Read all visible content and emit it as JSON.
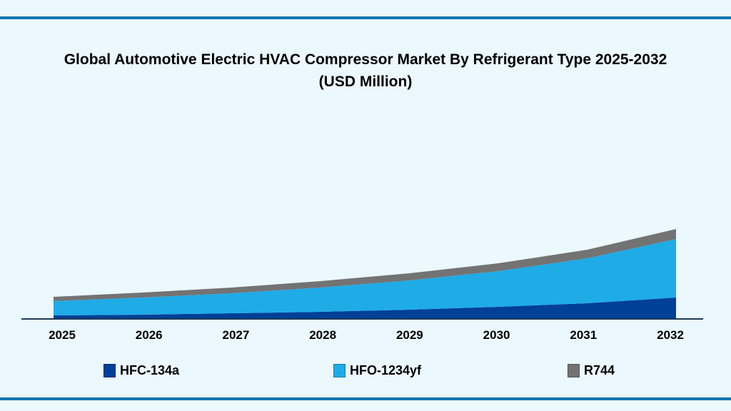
{
  "chart_data": {
    "type": "area",
    "stacked": true,
    "title": "Global Automotive Electric HVAC Compressor Market By Refrigerant Type 2025-2032",
    "subtitle": "(USD Million)",
    "xlabel": "",
    "ylabel": "",
    "categories": [
      "2025",
      "2026",
      "2027",
      "2028",
      "2029",
      "2030",
      "2031",
      "2032"
    ],
    "series": [
      {
        "name": "HFC-134a",
        "color": "#004097",
        "values": [
          4,
          5,
          7,
          9,
          12,
          16,
          21,
          29
        ]
      },
      {
        "name": "HFO-1234yf",
        "color": "#1fabe6",
        "values": [
          20,
          24,
          28,
          34,
          41,
          50,
          63,
          82
        ]
      },
      {
        "name": "R744",
        "color": "#737373",
        "values": [
          6,
          7,
          8,
          9,
          10,
          11,
          12,
          14
        ]
      }
    ],
    "ylim": [
      0,
      150
    ],
    "y_axis_visible": false,
    "grid": false,
    "legend": "bottom"
  },
  "colors": {
    "background": "#ebf8fe",
    "rule": "#0a77b0",
    "axis": "#1f3a5a"
  }
}
